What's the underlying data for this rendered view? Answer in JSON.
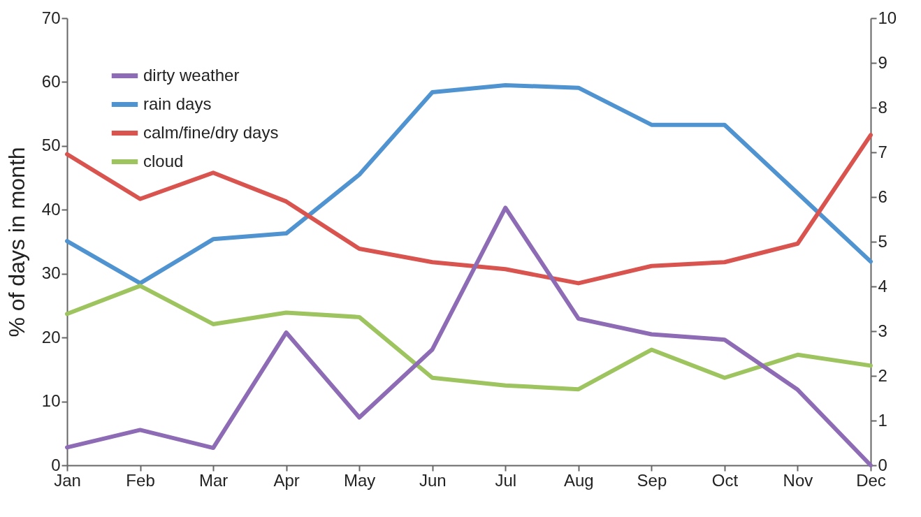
{
  "chart_data": {
    "type": "line",
    "ylabel": "% of days in month",
    "categories": [
      "Jan",
      "Feb",
      "Mar",
      "Apr",
      "May",
      "Jun",
      "Jul",
      "Aug",
      "Sep",
      "Oct",
      "Nov",
      "Dec"
    ],
    "ylim": [
      0,
      70
    ],
    "yticks": [
      0,
      10,
      20,
      30,
      40,
      50,
      60,
      70
    ],
    "y2lim": [
      0,
      10
    ],
    "y2ticks": [
      0,
      1,
      2,
      3,
      4,
      5,
      6,
      7,
      8,
      9,
      10
    ],
    "grid": false,
    "legend": "top left",
    "line_style": "solid",
    "series": [
      {
        "name": "dirty weather",
        "color": "#8e6bb5",
        "axis": "y2",
        "values": [
          0.4,
          0.79,
          0.39,
          2.97,
          1.07,
          2.59,
          5.76,
          3.28,
          2.93,
          2.81,
          1.69,
          0
        ]
      },
      {
        "name": "rain days",
        "color": "#4f93d0",
        "values": [
          35.1,
          28.5,
          35.4,
          36.3,
          45.5,
          58.4,
          59.5,
          59.1,
          53.3,
          53.3,
          42.6,
          31.9
        ]
      },
      {
        "name": "calm/fine/dry days",
        "color": "#d9534f",
        "values": [
          48.7,
          41.7,
          45.8,
          41.3,
          33.9,
          31.8,
          30.7,
          28.5,
          31.2,
          31.8,
          34.7,
          51.7
        ]
      },
      {
        "name": "cloud",
        "color": "#9dc45e",
        "values": [
          23.7,
          28.1,
          22.1,
          23.9,
          23.2,
          13.7,
          12.5,
          11.9,
          18.1,
          13.7,
          17.3,
          15.6
        ]
      }
    ]
  }
}
